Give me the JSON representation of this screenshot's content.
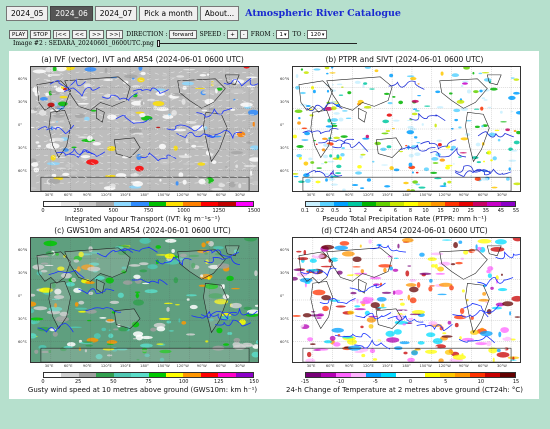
{
  "top_tabs": [
    {
      "label": "2024_05",
      "active": false
    },
    {
      "label": "2024_06",
      "active": true
    },
    {
      "label": "2024_07",
      "active": false
    }
  ],
  "pick_month_label": "Pick a month",
  "about_label": "About...",
  "app_title": "Atmospheric River Catalogue",
  "controls": {
    "play": "PLAY",
    "stop": "STOP",
    "first": "|<<",
    "prev": "<<",
    "next": ">>",
    "last": ">>|",
    "direction_label": "DIRECTION :",
    "direction_value": "forward",
    "speed_label": "SPEED :",
    "speed_plus": "+",
    "speed_minus": "-",
    "from_label": "FROM :",
    "from_value": "1",
    "to_label": "TO :",
    "to_value": "120"
  },
  "image_info": "Image #2 : SEDARA_20240601_0600UTC.png",
  "slider_position_fraction": 0.0,
  "lon_labels": [
    "30°E",
    "60°E",
    "90°E",
    "120°E",
    "150°E",
    "180°",
    "150°W",
    "120°W",
    "90°W",
    "60°W",
    "30°W"
  ],
  "lat_labels": [
    "60°N",
    "30°N",
    "0°",
    "30°S",
    "60°S"
  ],
  "panels": [
    {
      "title": "(a) IVF (vector), IVT and AR54 (2024-06-01 0600 UTC)",
      "ticks": [
        "0",
        "250",
        "500",
        "750",
        "1000",
        "1250",
        "1500"
      ],
      "colorbar_label": "Integrated Vapour Transport (IVT: kg m⁻¹s⁻¹)",
      "colors": [
        "#ffffff",
        "#e6e6e6",
        "#c8c8c8",
        "#a6a6a6",
        "#8cd8ff",
        "#2f8cff",
        "#00c000",
        "#ffe000",
        "#ff8000",
        "#ff0000",
        "#c00000",
        "#ff00ff"
      ],
      "bg": "#bdbdbd"
    },
    {
      "title": "(b) PTPR and SIVT (2024-06-01 0600 UTC)",
      "ticks": [
        "0.1",
        "0.2",
        "0.5",
        "1",
        "2",
        "4",
        "6",
        "8",
        "10",
        "15",
        "20",
        "25",
        "35",
        "45",
        "55"
      ],
      "colorbar_label": "Pseudo Total Precipitation Rate (PTPR: mm h⁻¹)",
      "colors": [
        "#c8f0ff",
        "#5ad2ff",
        "#00a0ff",
        "#00c8a0",
        "#00b400",
        "#64d200",
        "#c8e600",
        "#ffff00",
        "#ffc800",
        "#ff9600",
        "#ff3200",
        "#e60000",
        "#c80064",
        "#c800c8",
        "#8c00c8"
      ],
      "bg": "#ffffff"
    },
    {
      "title": "(c) GWS10m and AR54 (2024-06-01 0600 UTC)",
      "ticks": [
        "0",
        "25",
        "50",
        "75",
        "100",
        "125",
        "150"
      ],
      "colorbar_label": "Gusty wind speed at 10 metres above ground (GWS10m: km h⁻¹)",
      "colors": [
        "#ffffff",
        "#d2d2d2",
        "#a0a0a0",
        "#32a050",
        "#50c8b4",
        "#5adcc8",
        "#00c800",
        "#ffff00",
        "#ff9600",
        "#ff0000",
        "#ff00c8",
        "#8c00c8"
      ],
      "bg": "#5f9f7f"
    },
    {
      "title": "(d) CT24h and AR54 (2024-06-01 0600 UTC)",
      "ticks": [
        "-15",
        "-10",
        "-5",
        "0",
        "5",
        "10",
        "15"
      ],
      "colorbar_label": "24-h Change of Temperature at 2 metres above ground (CT24h: °C)",
      "colors": [
        "#780078",
        "#b400b4",
        "#ff64ff",
        "#ffb4ff",
        "#00a0ff",
        "#00dcff",
        "#ffffff",
        "#ffffff",
        "#ffff00",
        "#ffc800",
        "#ff9600",
        "#ff3200",
        "#c80000",
        "#640000"
      ],
      "bg": "#ffffff"
    }
  ]
}
